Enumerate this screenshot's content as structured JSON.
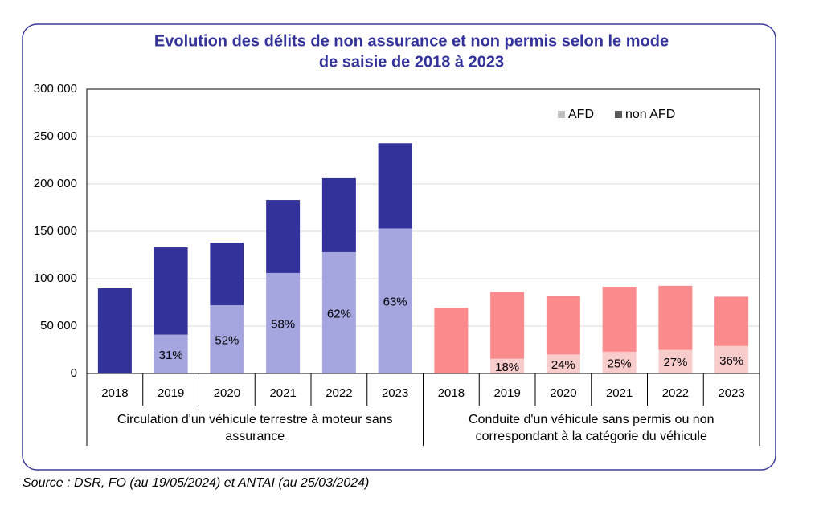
{
  "chart_data": {
    "type": "bar",
    "stacked": true,
    "title": [
      "Evolution des délits de non assurance et non permis selon le mode",
      "de saisie  de 2018 à 2023"
    ],
    "source": "Source : DSR, FO (au 19/05/2024) et ANTAI (au 25/03/2024)",
    "ylim": [
      0,
      300000
    ],
    "yticks": [
      0,
      {
        "value": 50000,
        "label": "50 000"
      },
      {
        "value": 100000,
        "label": "100 000"
      },
      {
        "value": 150000,
        "label": "150 000"
      },
      {
        "value": 200000,
        "label": "200 000"
      },
      {
        "value": 250000,
        "label": "250 000"
      },
      {
        "value": 300000,
        "label": "300 000"
      }
    ],
    "grid": true,
    "legend": {
      "position": "top-right",
      "names": [
        "AFD",
        "non AFD"
      ],
      "colors": [
        "#bfbfbf",
        "#595959"
      ]
    },
    "groups": [
      {
        "label": [
          "Circulation d'un véhicule terrestre à moteur sans",
          "assurance"
        ],
        "categories": [
          "2018",
          "2019",
          "2020",
          "2021",
          "2022",
          "2023"
        ],
        "series": [
          {
            "name": "AFD",
            "color": "#a5a5e0",
            "values": [
              0,
              41000,
              72000,
              106000,
              128000,
              153000
            ],
            "share_labels": [
              null,
              "31%",
              "52%",
              "58%",
              "62%",
              "63%"
            ]
          },
          {
            "name": "non AFD",
            "color": "#32329a",
            "values": [
              90000,
              92000,
              66000,
              77000,
              78000,
              90000
            ]
          }
        ]
      },
      {
        "label": [
          "Conduite d'un véhicule sans permis ou non",
          "correspondant à la catégorie du véhicule"
        ],
        "categories": [
          "2018",
          "2019",
          "2020",
          "2021",
          "2022",
          "2023"
        ],
        "series": [
          {
            "name": "AFD",
            "color": "#f9cccc",
            "values": [
              0,
              15500,
              20000,
              23000,
              25000,
              29000
            ],
            "share_labels": [
              null,
              "18%",
              "24%",
              "25%",
              "27%",
              "36%"
            ]
          },
          {
            "name": "non AFD",
            "color": "#fb8a8c",
            "values": [
              69000,
              70500,
              62000,
              68500,
              67500,
              52000
            ]
          }
        ]
      }
    ]
  }
}
